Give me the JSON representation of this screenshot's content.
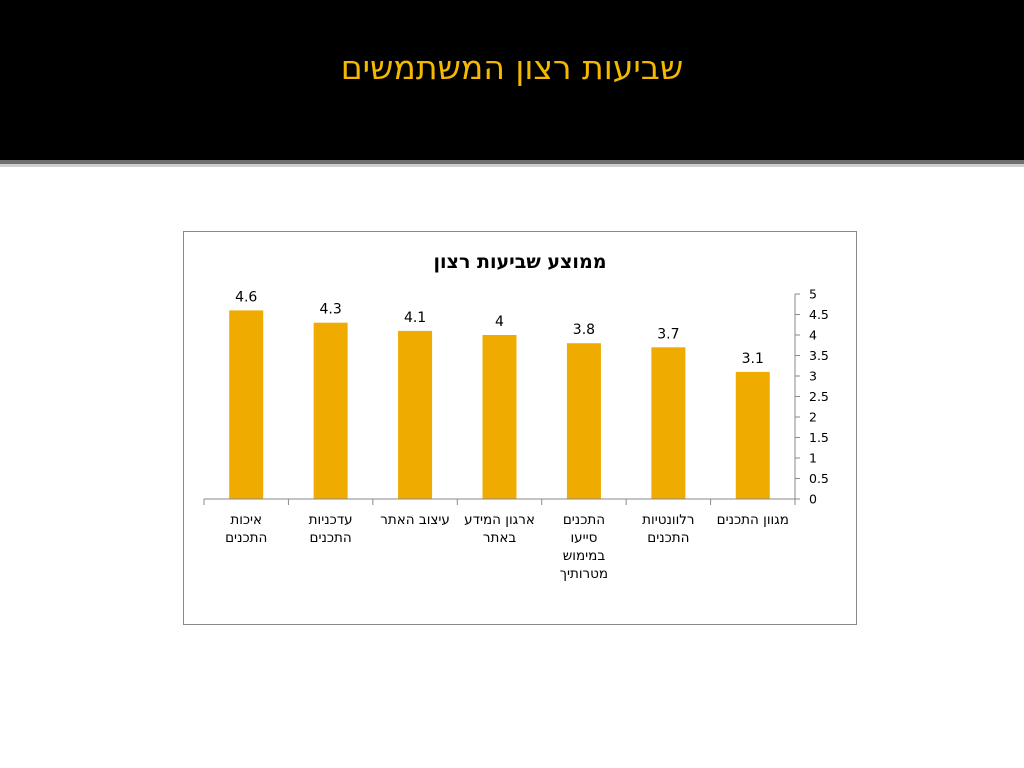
{
  "slide": {
    "title": "שביעות רצון המשתמשים"
  },
  "colors": {
    "header_bg": "#000000",
    "title": "#f5b800",
    "bar": "#f0ab00"
  },
  "chart_data": {
    "type": "bar",
    "title": "ממוצע שביעות רצון",
    "categories": [
      [
        "איכות",
        "התכנים"
      ],
      [
        "עדכניות",
        "התכנים"
      ],
      [
        "עיצוב האתר"
      ],
      [
        "ארגון המידע",
        "באתר"
      ],
      [
        "התכנים",
        "סייעו",
        "במימוש",
        "מטרותיך"
      ],
      [
        "רלוונטיות",
        "התכנים"
      ],
      [
        "מגוון התכנים"
      ]
    ],
    "values": [
      4.6,
      4.3,
      4.1,
      4,
      3.8,
      3.7,
      3.1
    ],
    "data_labels": [
      "4.6",
      "4.3",
      "4.1",
      "4",
      "3.8",
      "3.7",
      "3.1"
    ],
    "ylim": [
      0,
      5
    ],
    "y_ticks": [
      "0",
      "0.5",
      "1",
      "1.5",
      "2",
      "2.5",
      "3",
      "3.5",
      "4",
      "4.5",
      "5"
    ],
    "y_axis_position": "right",
    "grid": false,
    "legend": "none"
  }
}
